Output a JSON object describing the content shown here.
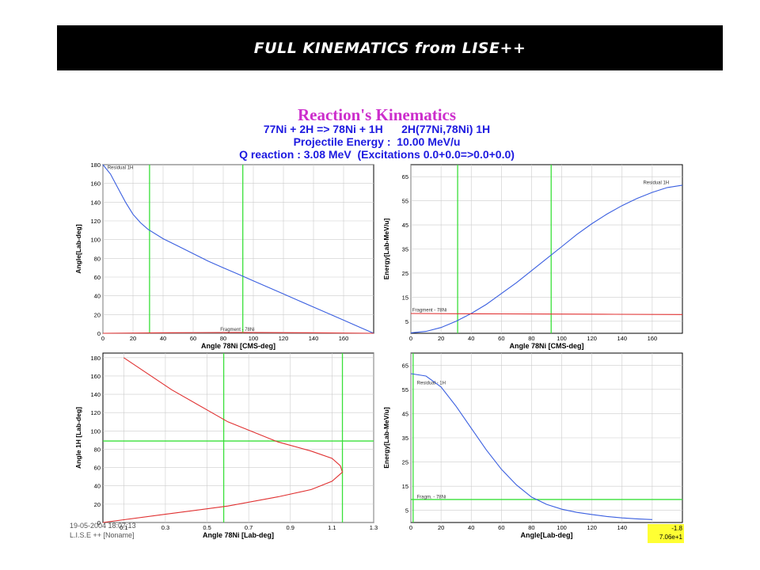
{
  "banner": {
    "title": "FULL KINEMATICS from LISE++"
  },
  "figure": {
    "title": "Reaction's Kinematics",
    "line1": "77Ni + 2H => 78Ni + 1H      2H(77Ni,78Ni) 1H",
    "line2": "Projectile Energy :  10.00 MeV/u",
    "line3": "Q reaction : 3.08 MeV  (Excitations 0.0+0.0=>0.0+0.0)",
    "footer_timestamp": "19-05-2004  18:07:13",
    "footer_app": "L.I.S.E ++   [Noname]",
    "badge_line1": "-1.8",
    "badge_line2": "7.06e+1"
  },
  "colors": {
    "blue": "#3a5fe0",
    "red": "#e03030",
    "green": "#39e039",
    "olive": "#7a7a00",
    "grid": "#cccccc",
    "plot_bg": "#ffffff"
  },
  "chart_data": [
    {
      "type": "line",
      "xlabel": "Angle 78Ni [CMS-deg]",
      "ylabel": "Angle[Lab-deg]",
      "xlim": [
        0,
        180
      ],
      "ylim": [
        0,
        180
      ],
      "xticks": [
        0,
        20,
        40,
        60,
        80,
        100,
        120,
        140,
        160
      ],
      "yticks": [
        0,
        20,
        40,
        60,
        80,
        100,
        120,
        140,
        160,
        180
      ],
      "ytick_labels": [
        "0",
        "20",
        "40",
        "60",
        "80",
        "100",
        "120",
        "140",
        "160",
        "180"
      ],
      "vlines": [
        31,
        93
      ],
      "hlines": [],
      "labels": [
        {
          "text": "Residual   1H",
          "x": 3,
          "y": 178
        },
        {
          "text": "Fragment - 78Ni",
          "x": 78,
          "y": 5
        }
      ],
      "series": [
        {
          "name": "Residual 1H",
          "color": "blue",
          "x": [
            0,
            5,
            10,
            15,
            20,
            25,
            30,
            40,
            50,
            60,
            70,
            80,
            90,
            100,
            110,
            120,
            130,
            140,
            150,
            160,
            170,
            180
          ],
          "y": [
            180,
            170,
            155,
            140,
            127,
            118,
            111,
            101,
            93,
            85,
            77,
            70,
            63,
            56,
            49,
            42,
            35,
            28,
            21,
            14,
            7,
            0
          ]
        },
        {
          "name": "Fragment - 78Ni",
          "color": "red",
          "x": [
            0,
            45,
            90,
            135,
            180
          ],
          "y": [
            0,
            0.6,
            0.9,
            0.6,
            0
          ]
        }
      ]
    },
    {
      "type": "line",
      "xlabel": "Angle 78Ni [CMS-deg]",
      "ylabel": "Energy[Lab-MeV/u]",
      "xlim": [
        0,
        180
      ],
      "ylim": [
        0,
        70
      ],
      "xticks": [
        0,
        20,
        40,
        60,
        80,
        100,
        120,
        140,
        160
      ],
      "yticks": [
        5,
        15,
        25,
        35,
        45,
        55,
        65
      ],
      "ytick_labels": [
        "5",
        "15",
        "25",
        "35",
        "45",
        "55",
        "65"
      ],
      "vlines": [
        31,
        93
      ],
      "hlines": [],
      "labels": [
        {
          "text": "Residual   1H",
          "x": 154,
          "y": 63
        },
        {
          "text": "Fragment - 78Ni",
          "x": 1,
          "y": 10
        }
      ],
      "series": [
        {
          "name": "Residual 1H",
          "color": "blue",
          "x": [
            0,
            10,
            20,
            30,
            40,
            50,
            60,
            70,
            80,
            90,
            100,
            110,
            120,
            130,
            140,
            150,
            160,
            170,
            180
          ],
          "y": [
            0.2,
            0.8,
            2.4,
            5.0,
            8.2,
            12,
            16.5,
            21,
            26,
            31,
            36,
            41,
            45.5,
            49.5,
            53,
            56,
            58.5,
            60.5,
            61.5
          ]
        },
        {
          "name": "Fragment - 78Ni",
          "color": "red",
          "x": [
            0,
            45,
            90,
            135,
            180
          ],
          "y": [
            8.2,
            8.1,
            8.0,
            7.9,
            7.8
          ]
        }
      ]
    },
    {
      "type": "line",
      "xlabel": "Angle 78Ni [Lab-deg]",
      "ylabel": "Angle 1H [Lab-deg]",
      "xlim": [
        0,
        1.3
      ],
      "ylim": [
        0,
        185
      ],
      "xticks": [
        0.1,
        0.3,
        0.5,
        0.7,
        0.9,
        1.1,
        1.3
      ],
      "yticks": [
        0,
        20,
        40,
        60,
        80,
        100,
        120,
        140,
        160,
        180
      ],
      "ytick_labels": [
        "0",
        "20",
        "40",
        "60",
        "80",
        "100",
        "120",
        "140",
        "160",
        "180"
      ],
      "vlines": [
        0.58,
        1.15
      ],
      "hlines": [
        89
      ],
      "labels": [],
      "series": [
        {
          "name": "Angle 1H vs Angle 78Ni",
          "color": "red",
          "x": [
            0.0,
            0.3,
            0.6,
            0.84,
            1.0,
            1.1,
            1.15,
            1.14,
            1.1,
            1.0,
            0.84,
            0.6,
            0.33,
            0.1
          ],
          "y": [
            0,
            9,
            18,
            28,
            36,
            45,
            55,
            62,
            70,
            78,
            88,
            110,
            145,
            180
          ]
        }
      ]
    },
    {
      "type": "line",
      "xlabel": "Angle[Lab-deg]",
      "ylabel": "Energy[Lab-MeV/u]",
      "xlim": [
        0,
        180
      ],
      "ylim": [
        0,
        70
      ],
      "xticks": [
        0,
        20,
        40,
        60,
        80,
        100,
        120,
        140,
        160
      ],
      "yticks": [
        5,
        15,
        25,
        35,
        45,
        55,
        65
      ],
      "ytick_labels": [
        "5",
        "15",
        "25",
        "35",
        "45",
        "55",
        "65"
      ],
      "vlines": [
        1.5
      ],
      "hlines": [
        9.5
      ],
      "labels": [
        {
          "text": "Residual - 1H",
          "x": 4,
          "y": 58
        },
        {
          "text": "Fragm. - 78Ni",
          "x": 4,
          "y": 11
        }
      ],
      "series": [
        {
          "name": "Residual - 1H",
          "color": "blue",
          "x": [
            0,
            10,
            20,
            30,
            40,
            50,
            60,
            70,
            80,
            90,
            100,
            110,
            120,
            130,
            140,
            150,
            160
          ],
          "y": [
            61.5,
            60.5,
            56,
            48,
            39,
            30,
            22,
            15.5,
            10.5,
            7.5,
            5.5,
            4.2,
            3.3,
            2.5,
            1.9,
            1.5,
            1.2
          ]
        }
      ]
    }
  ]
}
